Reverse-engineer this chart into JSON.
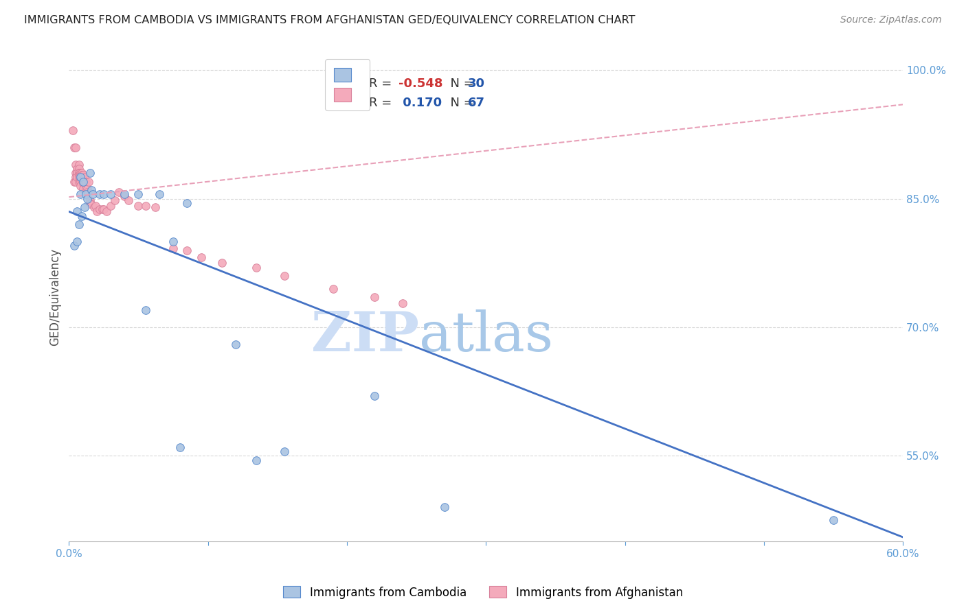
{
  "title": "IMMIGRANTS FROM CAMBODIA VS IMMIGRANTS FROM AFGHANISTAN GED/EQUIVALENCY CORRELATION CHART",
  "source": "Source: ZipAtlas.com",
  "ylabel": "GED/Equivalency",
  "xlim": [
    0.0,
    0.6
  ],
  "ylim": [
    0.45,
    1.02
  ],
  "xticks": [
    0.0,
    0.1,
    0.2,
    0.3,
    0.4,
    0.5,
    0.6
  ],
  "xticklabels": [
    "0.0%",
    "",
    "",
    "",
    "",
    "",
    "60.0%"
  ],
  "yticks": [
    0.55,
    0.7,
    0.85,
    1.0
  ],
  "yticklabels": [
    "55.0%",
    "70.0%",
    "85.0%",
    "100.0%"
  ],
  "legend_r_cambodia": "-0.548",
  "legend_n_cambodia": "30",
  "legend_r_afghanistan": " 0.170",
  "legend_n_afghanistan": "67",
  "cambodia_color": "#aac4e2",
  "afghanistan_color": "#f4aabb",
  "cambodia_line_color": "#4472c4",
  "afghanistan_line_color": "#e8a0b8",
  "watermark_zip": "ZIP",
  "watermark_atlas": "atlas",
  "watermark_color_zip": "#ccddf0",
  "watermark_color_atlas": "#b8cce8",
  "background_color": "#ffffff",
  "grid_color": "#d8d8d8",
  "cambodia_points_x": [
    0.004,
    0.006,
    0.006,
    0.007,
    0.008,
    0.008,
    0.009,
    0.01,
    0.011,
    0.012,
    0.013,
    0.015,
    0.016,
    0.017,
    0.022,
    0.025,
    0.03,
    0.04,
    0.05,
    0.055,
    0.065,
    0.075,
    0.08,
    0.085,
    0.12,
    0.135,
    0.155,
    0.22,
    0.27,
    0.55
  ],
  "cambodia_points_y": [
    0.795,
    0.835,
    0.8,
    0.82,
    0.855,
    0.875,
    0.83,
    0.87,
    0.84,
    0.855,
    0.85,
    0.88,
    0.86,
    0.855,
    0.855,
    0.855,
    0.855,
    0.855,
    0.855,
    0.72,
    0.855,
    0.8,
    0.56,
    0.845,
    0.68,
    0.545,
    0.555,
    0.62,
    0.49,
    0.475
  ],
  "afghanistan_points_x": [
    0.003,
    0.004,
    0.004,
    0.005,
    0.005,
    0.005,
    0.005,
    0.005,
    0.006,
    0.006,
    0.006,
    0.006,
    0.007,
    0.007,
    0.007,
    0.007,
    0.007,
    0.007,
    0.007,
    0.008,
    0.008,
    0.008,
    0.008,
    0.008,
    0.008,
    0.009,
    0.009,
    0.009,
    0.009,
    0.01,
    0.01,
    0.01,
    0.01,
    0.011,
    0.011,
    0.012,
    0.012,
    0.013,
    0.013,
    0.014,
    0.015,
    0.015,
    0.016,
    0.018,
    0.019,
    0.02,
    0.022,
    0.024,
    0.025,
    0.027,
    0.03,
    0.033,
    0.036,
    0.04,
    0.043,
    0.05,
    0.055,
    0.062,
    0.075,
    0.085,
    0.095,
    0.11,
    0.135,
    0.155,
    0.19,
    0.22,
    0.24
  ],
  "afghanistan_points_y": [
    0.93,
    0.91,
    0.87,
    0.91,
    0.89,
    0.88,
    0.875,
    0.87,
    0.88,
    0.885,
    0.88,
    0.875,
    0.89,
    0.885,
    0.88,
    0.88,
    0.878,
    0.875,
    0.87,
    0.88,
    0.878,
    0.875,
    0.872,
    0.87,
    0.865,
    0.88,
    0.878,
    0.875,
    0.872,
    0.878,
    0.872,
    0.868,
    0.862,
    0.875,
    0.868,
    0.87,
    0.862,
    0.862,
    0.858,
    0.87,
    0.848,
    0.845,
    0.843,
    0.84,
    0.842,
    0.835,
    0.838,
    0.838,
    0.838,
    0.835,
    0.842,
    0.848,
    0.858,
    0.853,
    0.848,
    0.842,
    0.842,
    0.84,
    0.792,
    0.79,
    0.782,
    0.775,
    0.77,
    0.76,
    0.745,
    0.735,
    0.728
  ],
  "cam_trend_x0": 0.0,
  "cam_trend_y0": 0.835,
  "cam_trend_x1": 0.6,
  "cam_trend_y1": 0.455,
  "afg_trend_x0": 0.0,
  "afg_trend_y0": 0.852,
  "afg_trend_x1": 0.6,
  "afg_trend_y1": 0.96
}
